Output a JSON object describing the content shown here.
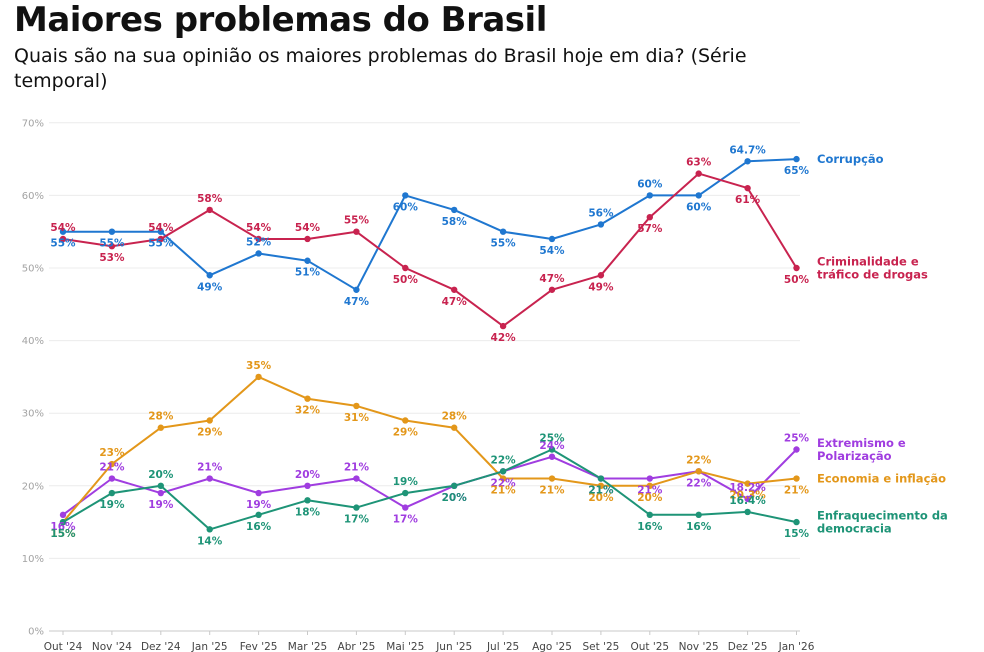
{
  "title": "Maiores problemas do Brasil",
  "subtitle": "Quais são na sua opinião os maiores problemas do Brasil hoje em dia? (Série temporal)",
  "chart_data": {
    "type": "line",
    "title": "Maiores problemas do Brasil",
    "subtitle": "Quais são na sua opinião os maiores problemas do Brasil hoje em dia? (Série temporal)",
    "xlabel": "",
    "ylabel": "",
    "ylim": [
      0,
      70
    ],
    "y_ticks": [
      "0%",
      "10%",
      "20%",
      "30%",
      "40%",
      "50%",
      "60%",
      "70%"
    ],
    "grid": true,
    "legend": "series labels at right end of lines",
    "x": [
      "Out '24",
      "Nov '24",
      "Dez '24",
      "Jan '25",
      "Fev '25",
      "Mar '25",
      "Abr '25",
      "Mai '25",
      "Jun '25",
      "Jul '25",
      "Ago '25",
      "Set '25",
      "Out '25",
      "Nov '25",
      "Dez '25",
      "Jan '26"
    ],
    "series": [
      {
        "name": "Corrupção",
        "color": "#1f77d0",
        "values": [
          55,
          55,
          55,
          49,
          52,
          51,
          47,
          60,
          58,
          55,
          54,
          56,
          60,
          60,
          64.7,
          65
        ],
        "labels": [
          "55%",
          "55%",
          "55%",
          "49%",
          "52%",
          "51%",
          "47%",
          "60%",
          "58%",
          "55%",
          "54%",
          "56%",
          "60%",
          "60%",
          "64.7%",
          "65%"
        ]
      },
      {
        "name": "Criminalidade e tráfico de drogas",
        "name_lines": [
          "Criminalidade e",
          "tráfico de drogas"
        ],
        "color": "#c8234f",
        "values": [
          54,
          53,
          54,
          58,
          54,
          54,
          55,
          50,
          47,
          42,
          47,
          49,
          57,
          63,
          61,
          50
        ],
        "labels": [
          "54%",
          "53%",
          "54%",
          "58%",
          "54%",
          "54%",
          "55%",
          "50%",
          "47%",
          "42%",
          "47%",
          "49%",
          "57%",
          "63%",
          "61%",
          "50%"
        ]
      },
      {
        "name": "Extremismo e Polarização",
        "name_lines": [
          "Extremismo e",
          "Polarização"
        ],
        "color": "#a03de0",
        "values": [
          16,
          21,
          19,
          21,
          19,
          20,
          21,
          17,
          20,
          22,
          24,
          21,
          21,
          22,
          18.2,
          25
        ],
        "labels": [
          "16%",
          "21%",
          "19%",
          "21%",
          "19%",
          "20%",
          "21%",
          "17%",
          "20%",
          "22%",
          "24%",
          "21%",
          "21%",
          "22%",
          "18.2%",
          "25%"
        ]
      },
      {
        "name": "Economia e inflação",
        "color": "#e3971a",
        "values": [
          15,
          23,
          28,
          29,
          35,
          32,
          31,
          29,
          28,
          21,
          21,
          20,
          20,
          22,
          20.3,
          21
        ],
        "labels": [
          "15%",
          "23%",
          "28%",
          "29%",
          "35%",
          "32%",
          "31%",
          "29%",
          "28%",
          "21%",
          "21%",
          "20%",
          "20%",
          "22%",
          "20.3%",
          "21%"
        ]
      },
      {
        "name": "Enfraquecimento da democracia",
        "name_lines": [
          "Enfraquecimento da",
          "democracia"
        ],
        "color": "#1e9477",
        "values": [
          15,
          19,
          20,
          14,
          16,
          18,
          17,
          19,
          20,
          22,
          25,
          21,
          16,
          16,
          16.4,
          15
        ],
        "labels": [
          "15%",
          "19%",
          "20%",
          "14%",
          "16%",
          "18%",
          "17%",
          "19%",
          "20%",
          "22%",
          "25%",
          "21%",
          "16%",
          "16%",
          "16.4%",
          "15%"
        ]
      }
    ]
  }
}
